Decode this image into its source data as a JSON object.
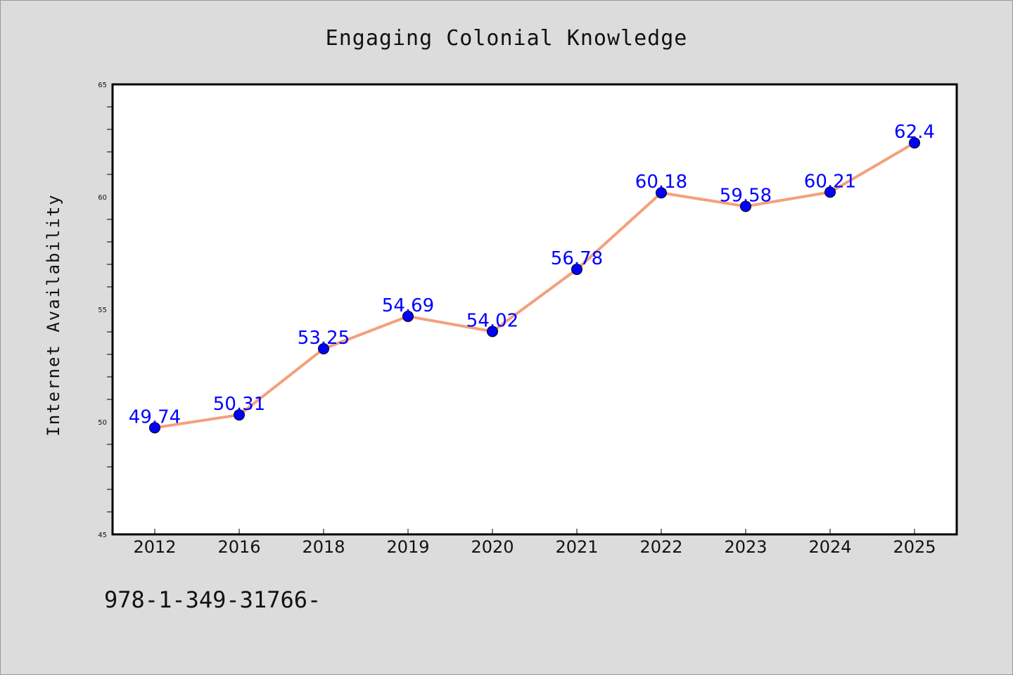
{
  "chart_data": {
    "type": "line",
    "title": "Engaging Colonial Knowledge",
    "xlabel": "",
    "ylabel": "Internet Availability",
    "categories": [
      "2012",
      "2016",
      "2018",
      "2019",
      "2020",
      "2021",
      "2022",
      "2023",
      "2024",
      "2025"
    ],
    "values": [
      49.74,
      50.31,
      53.25,
      54.69,
      54.02,
      56.78,
      60.18,
      59.58,
      60.21,
      62.4
    ],
    "data_labels": [
      "49.74",
      "50.31",
      "53.25",
      "54.69",
      "54.02",
      "56.78",
      "60.18",
      "59.58",
      "60.21",
      "62.4"
    ],
    "ylim": [
      45,
      65
    ],
    "yticks": [
      "45",
      "50",
      "55",
      "60",
      "65"
    ],
    "grid": false,
    "legend": "none",
    "colors": {
      "line": "#f4a07c",
      "marker": "#0000ff",
      "data_label": "#0000ff",
      "plot_background": "#ffffff",
      "page_background": "#dcdcdc"
    }
  },
  "footer": {
    "text": "978-1-349-31766-"
  }
}
